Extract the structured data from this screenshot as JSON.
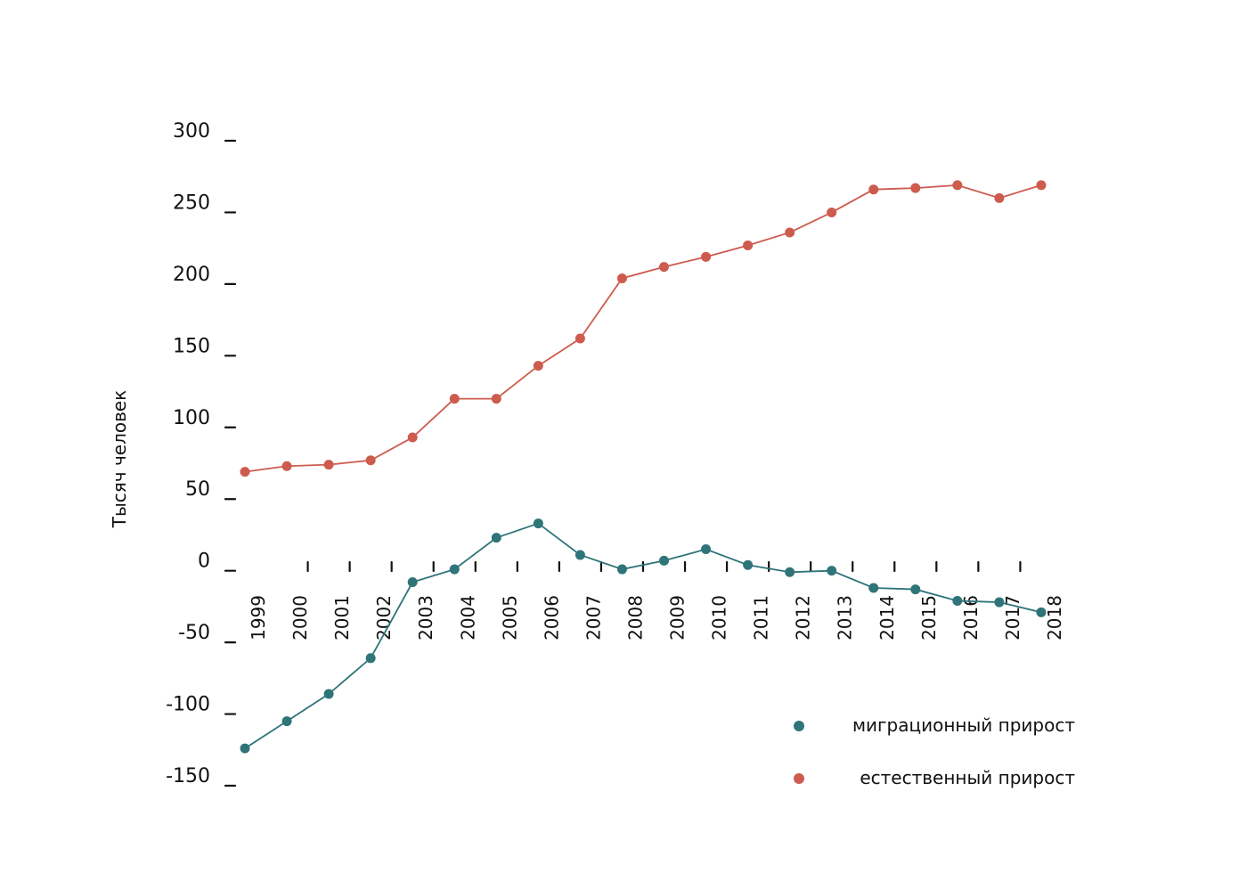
{
  "chart_data": {
    "type": "line",
    "title": "",
    "xlabel": "",
    "ylabel": "Тысяч человек",
    "ylim": [
      -150,
      300
    ],
    "yticks": [
      300,
      250,
      200,
      150,
      100,
      50,
      0,
      -50,
      -100,
      -150
    ],
    "x": [
      "1999",
      "2000",
      "2001",
      "2002",
      "2003",
      "2004",
      "2005",
      "2006",
      "2007",
      "2008",
      "2009",
      "2010",
      "2011",
      "2012",
      "2013",
      "2014",
      "2015",
      "2016",
      "2017",
      "2018"
    ],
    "series": [
      {
        "name": "миграционный прирост",
        "color": "#2e7479",
        "values": [
          -124,
          -105,
          -86,
          -61,
          -8,
          1,
          23,
          33,
          11,
          1,
          7,
          15,
          4,
          -1,
          0,
          -12,
          -13,
          -21,
          -22,
          -29
        ]
      },
      {
        "name": "естественный прирост",
        "color": "#cd5b4e",
        "values": [
          69,
          73,
          74,
          77,
          93,
          120,
          120,
          143,
          162,
          204,
          212,
          219,
          227,
          236,
          250,
          266,
          267,
          269,
          260,
          269
        ]
      }
    ],
    "legend": "bottom-right"
  }
}
